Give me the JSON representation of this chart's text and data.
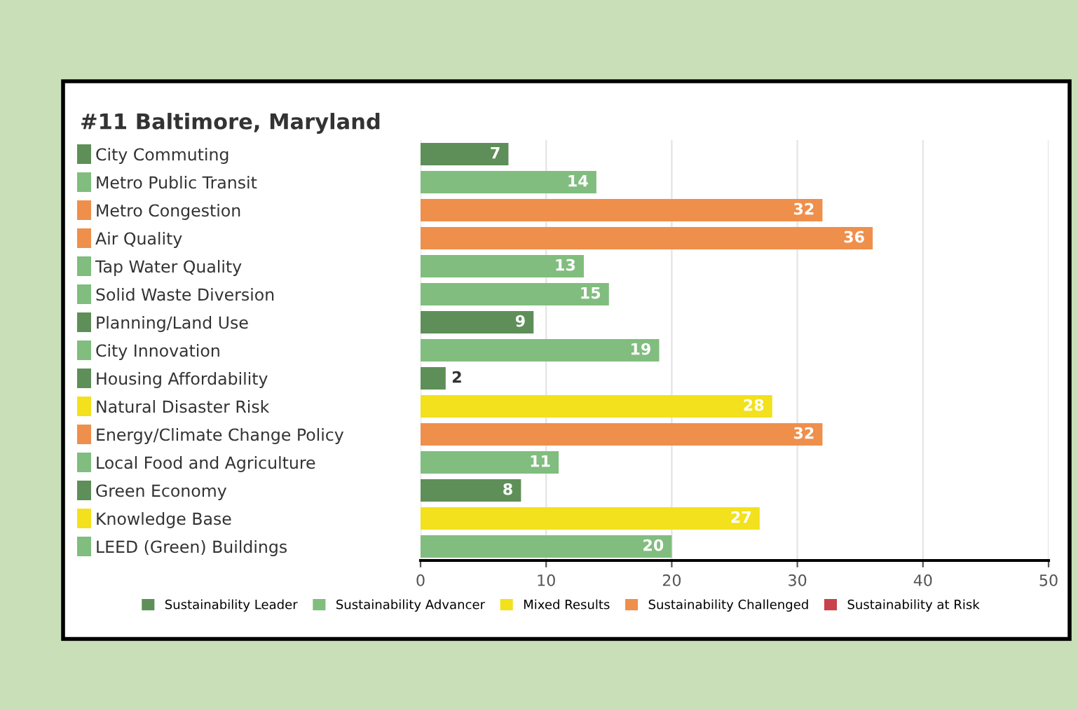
{
  "chart_data": {
    "type": "bar",
    "orientation": "horizontal",
    "title": "#11 Baltimore, Maryland",
    "categories": [
      "City Commuting",
      "Metro Public Transit",
      "Metro Congestion",
      "Air Quality",
      "Tap Water Quality",
      "Solid Waste Diversion",
      "Planning/Land Use",
      "City Innovation",
      "Housing Affordability",
      "Natural Disaster Risk",
      "Energy/Climate Change Policy",
      "Local Food and Agriculture",
      "Green Economy",
      "Knowledge Base",
      "LEED (Green) Buildings"
    ],
    "series": [
      {
        "name": "Sustainability Leader",
        "color": "#5e8f58",
        "values": [
          7,
          null,
          null,
          null,
          null,
          null,
          9,
          null,
          2,
          null,
          null,
          null,
          8,
          null,
          null
        ]
      },
      {
        "name": "Sustainability Advancer",
        "color": "#80bd7e",
        "values": [
          null,
          14,
          null,
          null,
          13,
          15,
          null,
          19,
          null,
          null,
          null,
          11,
          null,
          null,
          20
        ]
      },
      {
        "name": "Mixed Results",
        "color": "#f2e11c",
        "values": [
          null,
          null,
          null,
          null,
          null,
          null,
          null,
          null,
          null,
          28,
          null,
          null,
          null,
          27,
          null
        ]
      },
      {
        "name": "Sustainability Challenged",
        "color": "#ef8f4c",
        "values": [
          null,
          null,
          32,
          36,
          null,
          null,
          null,
          null,
          null,
          null,
          32,
          null,
          null,
          null,
          null
        ]
      },
      {
        "name": "Sustainability at Risk",
        "color": "#c8414b",
        "values": [
          null,
          null,
          null,
          null,
          null,
          null,
          null,
          null,
          null,
          null,
          null,
          null,
          null,
          null,
          null
        ]
      }
    ],
    "xlim": [
      0,
      50
    ],
    "xticks": [
      0,
      10,
      20,
      30,
      40,
      50
    ],
    "grid": "x",
    "legend": "bottom",
    "data_labels": true
  }
}
